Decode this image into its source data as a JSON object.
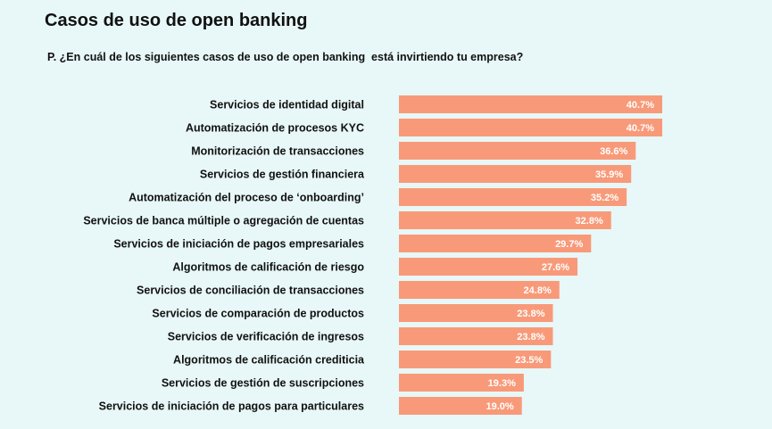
{
  "chart_data": {
    "type": "bar",
    "orientation": "horizontal",
    "title": "Casos de uso de open banking",
    "subtitle": "P. ¿En cuál de los siguientes casos de uso de open banking  está invirtiendo tu empresa?",
    "categories": [
      "Servicios de identidad digital",
      "Automatización de procesos KYC",
      "Monitorización de transacciones",
      "Servicios de gestión financiera",
      "Automatización del proceso de ‘onboarding’",
      "Servicios de banca múltiple o agregación de cuentas",
      "Servicios de iniciación de pagos empresariales",
      "Algoritmos de calificación de riesgo",
      "Servicios de conciliación de transacciones",
      "Servicios de comparación de productos",
      "Servicios de verificación de ingresos",
      "Algoritmos de calificación crediticia",
      "Servicios de gestión de suscripciones",
      "Servicios de iniciación de pagos para particulares"
    ],
    "values": [
      40.7,
      40.7,
      36.6,
      35.9,
      35.2,
      32.8,
      29.7,
      27.6,
      24.8,
      23.8,
      23.8,
      23.5,
      19.3,
      19.0
    ],
    "value_suffix": "%",
    "xlim": [
      0,
      40.7
    ],
    "grid": false,
    "bar_color": "#f89a79"
  }
}
